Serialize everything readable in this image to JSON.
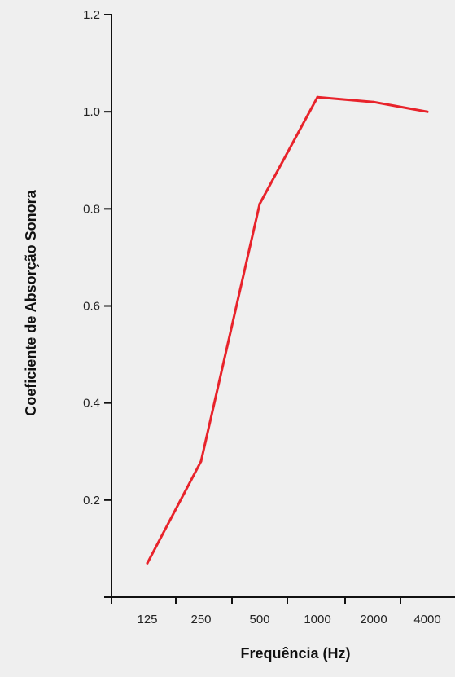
{
  "chart_data": {
    "type": "line",
    "title": "",
    "xlabel": "Frequência (Hz)",
    "ylabel": "Coeficiente de Absorção Sonora",
    "categories": [
      "125",
      "250",
      "500",
      "1000",
      "2000",
      "4000"
    ],
    "y_ticks": [
      "0.2",
      "0.4",
      "0.6",
      "0.8",
      "1.0",
      "1.2"
    ],
    "ylim": [
      0,
      1.2
    ],
    "series": [
      {
        "values": [
          0.07,
          0.28,
          0.81,
          1.03,
          1.02,
          1.0
        ]
      }
    ],
    "colors": {
      "line": "#e8232b",
      "axis": "#111111"
    },
    "grid": false,
    "legend": "none"
  }
}
